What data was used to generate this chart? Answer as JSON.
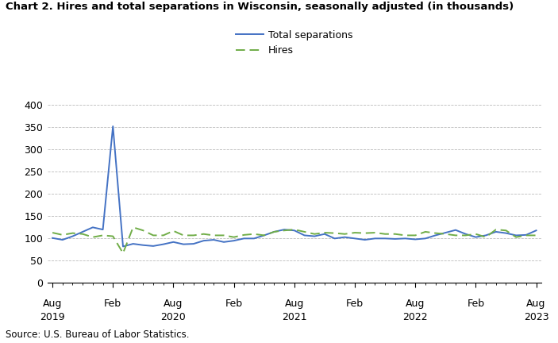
{
  "title": "Chart 2. Hires and total separations in Wisconsin, seasonally adjusted (in thousands)",
  "source": "Source: U.S. Bureau of Labor Statistics.",
  "ylim": [
    0,
    420
  ],
  "yticks": [
    0,
    50,
    100,
    150,
    200,
    250,
    300,
    350,
    400
  ],
  "separations_color": "#4472C4",
  "hires_color": "#70AD47",
  "total_separations": [
    101,
    97,
    105,
    115,
    125,
    120,
    352,
    82,
    88,
    85,
    83,
    87,
    92,
    87,
    88,
    95,
    97,
    92,
    95,
    100,
    100,
    107,
    115,
    120,
    118,
    107,
    105,
    110,
    100,
    103,
    100,
    97,
    100,
    100,
    99,
    100,
    98,
    100,
    107,
    113,
    119,
    110,
    103,
    107,
    115,
    112,
    107,
    108,
    118
  ],
  "hires": [
    113,
    108,
    112,
    110,
    103,
    107,
    105,
    67,
    125,
    118,
    107,
    107,
    117,
    107,
    107,
    110,
    107,
    107,
    103,
    108,
    110,
    107,
    115,
    118,
    120,
    115,
    110,
    113,
    112,
    110,
    113,
    112,
    113,
    110,
    110,
    107,
    107,
    115,
    112,
    110,
    107,
    107,
    110,
    103,
    120,
    118,
    103,
    107,
    107
  ],
  "x_major_ticks": [
    0,
    6,
    12,
    18,
    24,
    30,
    36,
    42,
    48
  ],
  "x_major_labels_row1": [
    "Aug",
    "Feb",
    "Aug",
    "Feb",
    "Aug",
    "Feb",
    "Aug",
    "Feb",
    "Aug"
  ],
  "x_major_labels_row2": [
    "2019",
    "",
    "2020",
    "",
    "2021",
    "",
    "2022",
    "",
    "2023"
  ]
}
